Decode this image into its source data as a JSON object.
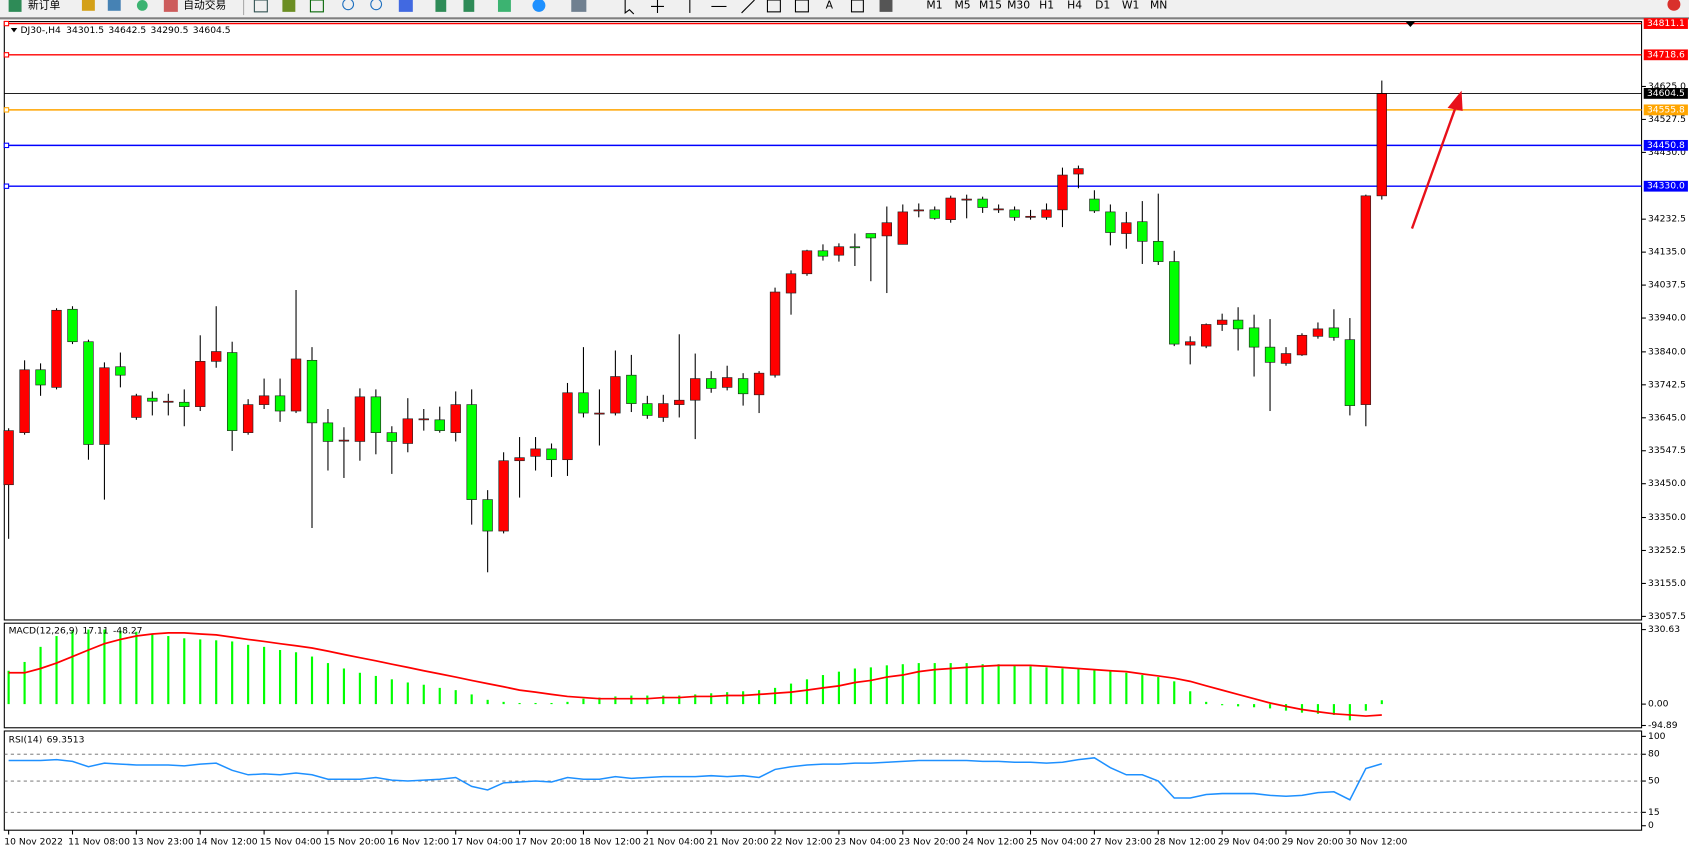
{
  "toolbar": {
    "new_order": "新订单",
    "auto_trading": "自动交易",
    "text_tool": "A",
    "timeframes": [
      "M1",
      "M5",
      "M15",
      "M30",
      "H1",
      "H4",
      "D1",
      "W1",
      "MN"
    ]
  },
  "chart_data": [
    {
      "type": "candlestick",
      "symbol": "DJ30-,H4",
      "categories": [
        "10 Nov 2022",
        null,
        null,
        null,
        "11 Nov 08:00",
        null,
        null,
        null,
        "13 Nov 23:00",
        null,
        null,
        null,
        "14 Nov 12:00",
        null,
        null,
        null,
        "15 Nov 04:00",
        null,
        null,
        null,
        "15 Nov 20:00",
        null,
        null,
        null,
        "16 Nov 12:00",
        null,
        null,
        null,
        "17 Nov 04:00",
        null,
        null,
        null,
        "17 Nov 20:00",
        null,
        null,
        null,
        "18 Nov 12:00",
        null,
        null,
        null,
        "21 Nov 04:00",
        null,
        null,
        null,
        "21 Nov 20:00",
        null,
        null,
        null,
        "22 Nov 12:00",
        null,
        null,
        null,
        "23 Nov 04:00",
        null,
        null,
        null,
        "23 Nov 20:00",
        null,
        null,
        null,
        "24 Nov 12:00",
        null,
        null,
        null,
        "25 Nov 04:00",
        null,
        null,
        null,
        "27 Nov 23:00",
        null,
        null,
        null,
        "28 Nov 12:00",
        null,
        null,
        null,
        "29 Nov 04:00",
        null,
        null,
        null,
        "29 Nov 20:00",
        null,
        null,
        null,
        "30 Nov 12:00",
        null,
        null
      ],
      "open": [
        33447,
        33601,
        33787,
        33735,
        33966,
        33870,
        33566,
        33796,
        33646,
        33703,
        33694,
        33691,
        33678,
        33812,
        33838,
        33601,
        33684,
        33710,
        33665,
        33815,
        33630,
        33579,
        33575,
        33707,
        33601,
        33569,
        33642,
        33639,
        33601,
        33684,
        33403,
        33310,
        33518,
        33531,
        33553,
        33521,
        33719,
        33659,
        33659,
        33771,
        33687,
        33646,
        33684,
        33697,
        33761,
        33735,
        33761,
        33713,
        33771,
        34014,
        34071,
        34139,
        34126,
        34151,
        34190,
        34183,
        34158,
        34260,
        34260,
        34231,
        34292,
        34292,
        34263,
        34260,
        34241,
        34238,
        34260,
        34366,
        34292,
        34254,
        34190,
        34225,
        34167,
        34107,
        33860,
        33857,
        33921,
        33934,
        33911,
        33854,
        33806,
        33831,
        33886,
        33911,
        33876,
        33684,
        34301.5
      ],
      "high": [
        33614,
        33815,
        33806,
        33969,
        33975,
        33876,
        33809,
        33838,
        33716,
        33723,
        33716,
        33729,
        33889,
        33975,
        33870,
        33700,
        33761,
        33761,
        34023,
        33854,
        33671,
        33617,
        33732,
        33729,
        33620,
        33703,
        33671,
        33678,
        33723,
        33729,
        33431,
        33543,
        33588,
        33588,
        33569,
        33748,
        33854,
        33729,
        33844,
        33831,
        33710,
        33713,
        33892,
        33835,
        33783,
        33799,
        33777,
        33783,
        34030,
        34081,
        34142,
        34158,
        34161,
        34190,
        34190,
        34270,
        34276,
        34279,
        34270,
        34302,
        34305,
        34299,
        34276,
        34270,
        34260,
        34279,
        34385,
        34391,
        34318,
        34276,
        34254,
        34286,
        34308,
        34139,
        33886,
        33924,
        33953,
        33972,
        33950,
        33937,
        33854,
        33895,
        33927,
        33966,
        33940,
        34305,
        34642.5
      ],
      "low": [
        33287,
        33595,
        33710,
        33729,
        33863,
        33521,
        33403,
        33735,
        33639,
        33652,
        33652,
        33620,
        33665,
        33793,
        33547,
        33595,
        33671,
        33633,
        33659,
        33319,
        33489,
        33467,
        33518,
        33537,
        33479,
        33543,
        33607,
        33601,
        33575,
        33329,
        33188,
        33303,
        33409,
        33489,
        33470,
        33473,
        33646,
        33563,
        33652,
        33662,
        33642,
        33633,
        33646,
        33582,
        33719,
        33726,
        33681,
        33659,
        33764,
        33950,
        34065,
        34110,
        34107,
        34094,
        34049,
        34014,
        34158,
        34238,
        34231,
        34222,
        34235,
        34251,
        34251,
        34228,
        34231,
        34231,
        34209,
        34324,
        34251,
        34155,
        34145,
        34100,
        34097,
        33857,
        33803,
        33851,
        33902,
        33844,
        33767,
        33665,
        33799,
        33828,
        33879,
        33873,
        33652,
        33620,
        34290.5
      ],
      "close": [
        33607,
        33787,
        33742,
        33963,
        33870,
        33566,
        33793,
        33771,
        33710,
        33694,
        33694,
        33678,
        33812,
        33841,
        33607,
        33684,
        33710,
        33665,
        33819,
        33630,
        33575,
        33579,
        33707,
        33601,
        33575,
        33642,
        33642,
        33607,
        33684,
        33403,
        33310,
        33518,
        33527,
        33553,
        33521,
        33719,
        33659,
        33659,
        33767,
        33687,
        33652,
        33687,
        33697,
        33761,
        33732,
        33764,
        33716,
        33777,
        34017,
        34071,
        34139,
        34123,
        34151,
        34148,
        34177,
        34222,
        34254,
        34260,
        34235,
        34295,
        34292,
        34267,
        34263,
        34238,
        34241,
        34260,
        34363,
        34382,
        34257,
        34193,
        34222,
        34167,
        34107,
        33863,
        33870,
        33921,
        33934,
        33908,
        33854,
        33809,
        33835,
        33889,
        33908,
        33883,
        33681,
        34301.5,
        34604.5
      ],
      "up_color": "#ff0000",
      "down_color": "#00ff00",
      "ylim": [
        33047,
        34817
      ],
      "yticks": [
        {
          "value": 34625,
          "label": "34625.0"
        },
        34527.5,
        {
          "value": 34430,
          "label": "34430.0"
        },
        34232.5,
        {
          "value": 34135,
          "label": "34135.0"
        },
        34037.5,
        {
          "value": 33940,
          "label": "33940.0"
        },
        {
          "value": 33840,
          "label": "33840.0"
        },
        33742.5,
        {
          "value": 33645,
          "label": "33645.0"
        },
        33547.5,
        {
          "value": 33450,
          "label": "33450.0"
        },
        {
          "value": 33350,
          "label": "33350.0"
        },
        33252.5,
        {
          "value": 33155,
          "label": "33155.0"
        },
        33057.5
      ],
      "levels": [
        {
          "value": 34811.1,
          "color": "#ff0000"
        },
        {
          "value": 34718.6,
          "color": "#ff0000"
        },
        {
          "value": 34555.8,
          "color": "#ffa500"
        },
        {
          "value": 34450.8,
          "color": "#0000ff"
        },
        {
          "value": 34330,
          "label": "34330.0",
          "color": "#0000ff"
        }
      ]
    },
    {
      "type": "macd",
      "name": "MACD(12,26,9)",
      "histogram": {
        "color": "#00ff00",
        "values": [
          148,
          187,
          254,
          302,
          326,
          331,
          331,
          326,
          321,
          311,
          302,
          292,
          287,
          283,
          278,
          263,
          254,
          240,
          230,
          211,
          182,
          158,
          139,
          125,
          110,
          96,
          86,
          72,
          62,
          43,
          19,
          10,
          5,
          5,
          5,
          10,
          24,
          29,
          34,
          38,
          38,
          38,
          38,
          43,
          48,
          53,
          57,
          62,
          72,
          91,
          110,
          129,
          144,
          158,
          163,
          172,
          177,
          182,
          182,
          182,
          182,
          177,
          177,
          172,
          168,
          163,
          158,
          158,
          153,
          148,
          139,
          129,
          120,
          101,
          57,
          10,
          -5,
          -10,
          -14,
          -19,
          -29,
          -38,
          -43,
          -48,
          -72,
          -29,
          17.11
        ]
      },
      "signal": {
        "color": "#ff0000",
        "values": [
          139,
          139,
          158,
          182,
          211,
          240,
          268,
          287,
          302,
          311,
          316,
          316,
          311,
          307,
          297,
          287,
          278,
          268,
          259,
          249,
          235,
          220,
          206,
          192,
          177,
          163,
          148,
          134,
          120,
          105,
          91,
          77,
          62,
          53,
          43,
          34,
          29,
          24,
          24,
          24,
          24,
          29,
          29,
          34,
          34,
          38,
          38,
          43,
          48,
          53,
          62,
          72,
          81,
          96,
          105,
          120,
          129,
          144,
          153,
          158,
          163,
          168,
          172,
          172,
          172,
          168,
          163,
          158,
          153,
          148,
          144,
          134,
          125,
          115,
          101,
          81,
          62,
          43,
          24,
          5,
          -10,
          -24,
          -34,
          -43,
          -48,
          -53,
          -48.27
        ]
      },
      "ylim": [
        -105,
        359
      ],
      "yticks": [
        330.63,
        {
          "value": 0,
          "label": "0.00"
        },
        -94.89
      ]
    },
    {
      "type": "rsi",
      "name": "RSI(14)",
      "color": "#1e90ff",
      "values": [
        73,
        73,
        73,
        74,
        72,
        66,
        70,
        69,
        68,
        68,
        68,
        67,
        69,
        70,
        62,
        57,
        58,
        57,
        59,
        57,
        52,
        52,
        52,
        54,
        51,
        50,
        51,
        52,
        54,
        44,
        40,
        48,
        49,
        50,
        49,
        54,
        52,
        52,
        55,
        53,
        54,
        55,
        55,
        55,
        56,
        55,
        56,
        54,
        63,
        66,
        68,
        69,
        69,
        70,
        70,
        71,
        72,
        73,
        73,
        73,
        73,
        72,
        72,
        71,
        71,
        70,
        71,
        74,
        76,
        65,
        57,
        57,
        50,
        31,
        31,
        35,
        36,
        36,
        36,
        34,
        33,
        34,
        37,
        38,
        29,
        64,
        69.3513
      ],
      "ylim": [
        -5,
        106
      ],
      "yticks": [
        100,
        80,
        50,
        15,
        0
      ],
      "levels": [
        80,
        50,
        15
      ]
    }
  ]
}
